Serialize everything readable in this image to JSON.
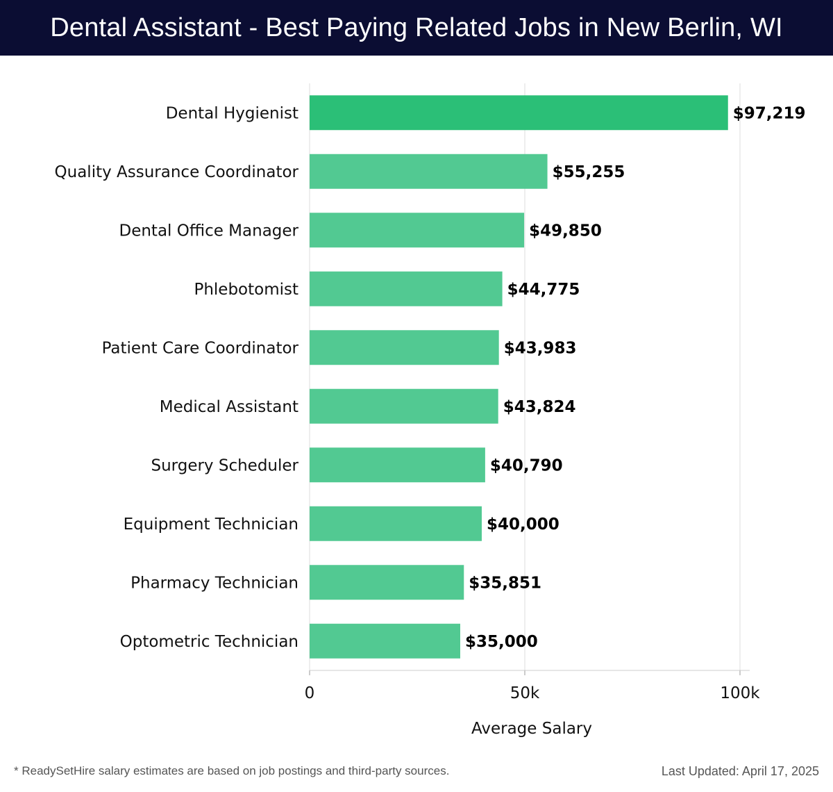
{
  "header": {
    "title": "Dental Assistant - Best Paying Related Jobs in New Berlin, WI"
  },
  "chart_data": {
    "type": "bar",
    "orientation": "horizontal",
    "categories": [
      "Dental Hygienist",
      "Quality Assurance Coordinator",
      "Dental Office Manager",
      "Phlebotomist",
      "Patient Care Coordinator",
      "Medical Assistant",
      "Surgery Scheduler",
      "Equipment Technician",
      "Pharmacy Technician",
      "Optometric Technician"
    ],
    "values": [
      97219,
      55255,
      49850,
      44775,
      43983,
      43824,
      40790,
      40000,
      35851,
      35000
    ],
    "value_labels": [
      "$97,219",
      "$55,255",
      "$49,850",
      "$44,775",
      "$43,983",
      "$43,824",
      "$40,790",
      "$40,000",
      "$35,851",
      "$35,000"
    ],
    "xlabel": "Average Salary",
    "ylabel": "",
    "xlim": [
      0,
      100000
    ],
    "xticks": [
      0,
      50000,
      100000
    ],
    "xtick_labels": [
      "0",
      "50k",
      "100k"
    ],
    "grid": true,
    "colors": {
      "top_bar": "#2bbf77",
      "bars": "#52c992",
      "grid": "#dddddd"
    }
  },
  "footer": {
    "note": "* ReadySetHire salary estimates are based on job postings and third-party sources.",
    "updated": "Last Updated: April 17, 2025"
  }
}
